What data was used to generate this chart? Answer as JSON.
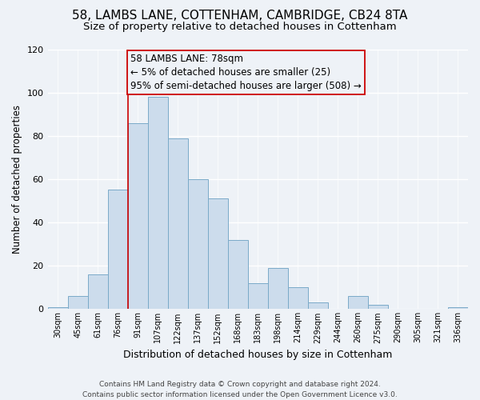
{
  "title1": "58, LAMBS LANE, COTTENHAM, CAMBRIDGE, CB24 8TA",
  "title2": "Size of property relative to detached houses in Cottenham",
  "xlabel": "Distribution of detached houses by size in Cottenham",
  "ylabel": "Number of detached properties",
  "bin_labels": [
    "30sqm",
    "45sqm",
    "61sqm",
    "76sqm",
    "91sqm",
    "107sqm",
    "122sqm",
    "137sqm",
    "152sqm",
    "168sqm",
    "183sqm",
    "198sqm",
    "214sqm",
    "229sqm",
    "244sqm",
    "260sqm",
    "275sqm",
    "290sqm",
    "305sqm",
    "321sqm",
    "336sqm"
  ],
  "bar_heights": [
    1,
    6,
    16,
    55,
    86,
    98,
    79,
    60,
    51,
    32,
    12,
    19,
    10,
    3,
    0,
    6,
    2,
    0,
    0,
    0,
    1
  ],
  "bar_color": "#ccdcec",
  "bar_edge_color": "#7aaac8",
  "vline_x_index": 3,
  "vline_color": "#cc0000",
  "annotation_text": "58 LAMBS LANE: 78sqm\n← 5% of detached houses are smaller (25)\n95% of semi-detached houses are larger (508) →",
  "annotation_box_edgecolor": "#cc0000",
  "annotation_fontsize": 8.5,
  "ylim": [
    0,
    120
  ],
  "yticks": [
    0,
    20,
    40,
    60,
    80,
    100,
    120
  ],
  "footer_text": "Contains HM Land Registry data © Crown copyright and database right 2024.\nContains public sector information licensed under the Open Government Licence v3.0.",
  "bg_color": "#eef2f7",
  "title1_fontsize": 11,
  "title2_fontsize": 9.5,
  "xlabel_fontsize": 9,
  "ylabel_fontsize": 8.5,
  "footer_fontsize": 6.5,
  "tick_fontsize": 7,
  "ytick_fontsize": 8
}
